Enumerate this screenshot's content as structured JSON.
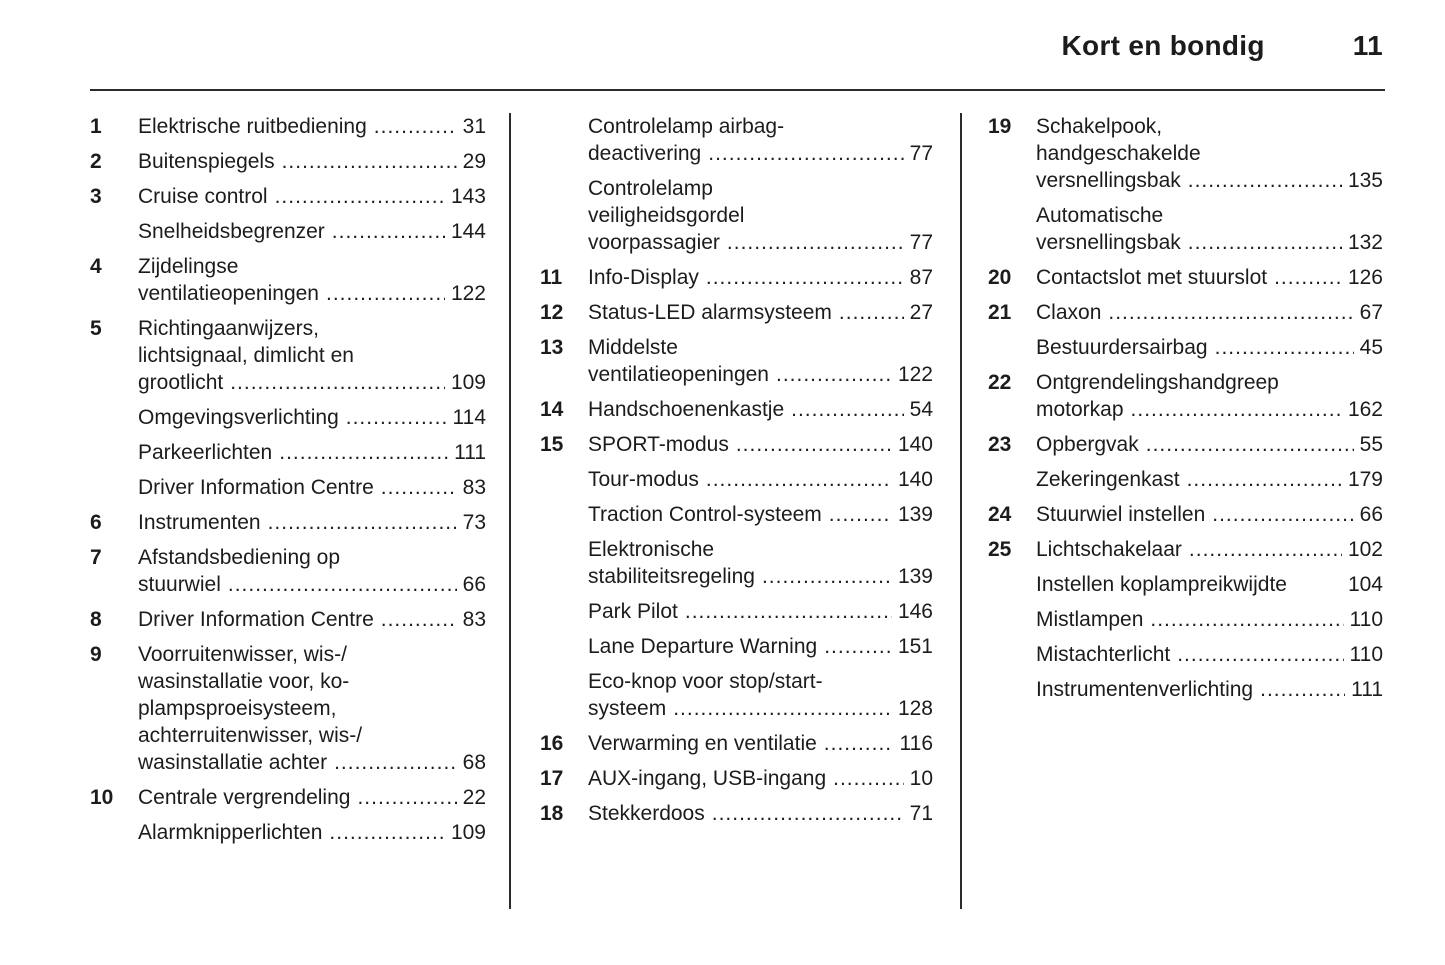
{
  "meta": {
    "background": "#ffffff",
    "text_color": "#1c1c1c",
    "rule_color": "#2b2b2b",
    "leader_char": "."
  },
  "header": {
    "title": "Kort en bondig",
    "page_number": "11"
  },
  "columns": [
    {
      "entries": [
        {
          "num": "1",
          "lines": [
            "Elektrische ruitbediening"
          ],
          "page": "31"
        },
        {
          "num": "2",
          "lines": [
            "Buitenspiegels"
          ],
          "page": "29"
        },
        {
          "num": "3",
          "lines": [
            "Cruise control"
          ],
          "page": "143"
        },
        {
          "num": "",
          "lines": [
            "Snelheidsbegrenzer"
          ],
          "page": "144"
        },
        {
          "num": "4",
          "lines": [
            "Zijdelingse",
            "ventilatieopeningen"
          ],
          "page": "122"
        },
        {
          "num": "5",
          "lines": [
            "Richtingaanwijzers,",
            "lichtsignaal, dimlicht en",
            "grootlicht"
          ],
          "page": "109"
        },
        {
          "num": "",
          "lines": [
            "Omgevingsverlichting"
          ],
          "page": "114"
        },
        {
          "num": "",
          "lines": [
            "Parkeerlichten"
          ],
          "page": "111"
        },
        {
          "num": "",
          "lines": [
            "Driver Information Centre"
          ],
          "page": "83"
        },
        {
          "num": "6",
          "lines": [
            "Instrumenten"
          ],
          "page": "73"
        },
        {
          "num": "7",
          "lines": [
            "Afstandsbediening op",
            "stuurwiel"
          ],
          "page": "66"
        },
        {
          "num": "8",
          "lines": [
            "Driver Information Centre"
          ],
          "page": "83"
        },
        {
          "num": "9",
          "lines": [
            "Voorruitenwisser, wis-/",
            "wasinstallatie voor, ko-",
            "plampsproeisysteem,",
            "achterruitenwisser, wis-/",
            "wasinstallatie achter"
          ],
          "page": "68"
        },
        {
          "num": "10",
          "lines": [
            "Centrale vergrendeling"
          ],
          "page": "22"
        },
        {
          "num": "",
          "lines": [
            "Alarmknipperlichten"
          ],
          "page": "109"
        }
      ]
    },
    {
      "entries": [
        {
          "num": "",
          "lines": [
            "Controlelamp airbag-",
            "deactivering"
          ],
          "page": "77"
        },
        {
          "num": "",
          "lines": [
            "Controlelamp",
            "veiligheidsgordel",
            "voorpassagier"
          ],
          "page": "77"
        },
        {
          "num": "11",
          "lines": [
            "Info-Display"
          ],
          "page": "87"
        },
        {
          "num": "12",
          "lines": [
            "Status-LED alarmsysteem"
          ],
          "page": "27"
        },
        {
          "num": "13",
          "lines": [
            "Middelste",
            "ventilatieopeningen"
          ],
          "page": "122"
        },
        {
          "num": "14",
          "lines": [
            "Handschoenenkastje"
          ],
          "page": "54"
        },
        {
          "num": "15",
          "lines": [
            "SPORT-modus"
          ],
          "page": "140"
        },
        {
          "num": "",
          "lines": [
            "Tour-modus"
          ],
          "page": "140"
        },
        {
          "num": "",
          "lines": [
            "Traction Control-systeem"
          ],
          "page": "139"
        },
        {
          "num": "",
          "lines": [
            "Elektronische",
            "stabiliteitsregeling"
          ],
          "page": "139"
        },
        {
          "num": "",
          "lines": [
            "Park Pilot"
          ],
          "page": "146"
        },
        {
          "num": "",
          "lines": [
            "Lane Departure Warning"
          ],
          "page": "151"
        },
        {
          "num": "",
          "lines": [
            "Eco-knop voor stop/start-",
            "systeem"
          ],
          "page": "128"
        },
        {
          "num": "16",
          "lines": [
            "Verwarming en ventilatie"
          ],
          "page": "116"
        },
        {
          "num": "17",
          "lines": [
            "AUX-ingang, USB-ingang"
          ],
          "page": "10"
        },
        {
          "num": "18",
          "lines": [
            "Stekkerdoos"
          ],
          "page": "71"
        }
      ]
    },
    {
      "entries": [
        {
          "num": "19",
          "lines": [
            "Schakelpook,",
            "handgeschakelde",
            "versnellingsbak"
          ],
          "page": "135"
        },
        {
          "num": "",
          "lines": [
            "Automatische",
            "versnellingsbak"
          ],
          "page": "132"
        },
        {
          "num": "20",
          "lines": [
            "Contactslot met stuurslot"
          ],
          "page": "126"
        },
        {
          "num": "21",
          "lines": [
            "Claxon"
          ],
          "page": "67"
        },
        {
          "num": "",
          "lines": [
            "Bestuurdersairbag"
          ],
          "page": "45"
        },
        {
          "num": "22",
          "lines": [
            "Ontgrendelingshandgreep",
            "motorkap"
          ],
          "page": "162"
        },
        {
          "num": "23",
          "lines": [
            "Opbergvak"
          ],
          "page": "55"
        },
        {
          "num": "",
          "lines": [
            "Zekeringenkast"
          ],
          "page": "179"
        },
        {
          "num": "24",
          "lines": [
            "Stuurwiel instellen"
          ],
          "page": "66"
        },
        {
          "num": "25",
          "lines": [
            "Lichtschakelaar"
          ],
          "page": "102"
        },
        {
          "num": "",
          "lines": [
            "Instellen koplampreikwijdte"
          ],
          "page": "104",
          "no_leader": true
        },
        {
          "num": "",
          "lines": [
            "Mistlampen"
          ],
          "page": "110"
        },
        {
          "num": "",
          "lines": [
            "Mistachterlicht"
          ],
          "page": "110"
        },
        {
          "num": "",
          "lines": [
            "Instrumentenverlichting"
          ],
          "page": "111"
        }
      ]
    }
  ]
}
